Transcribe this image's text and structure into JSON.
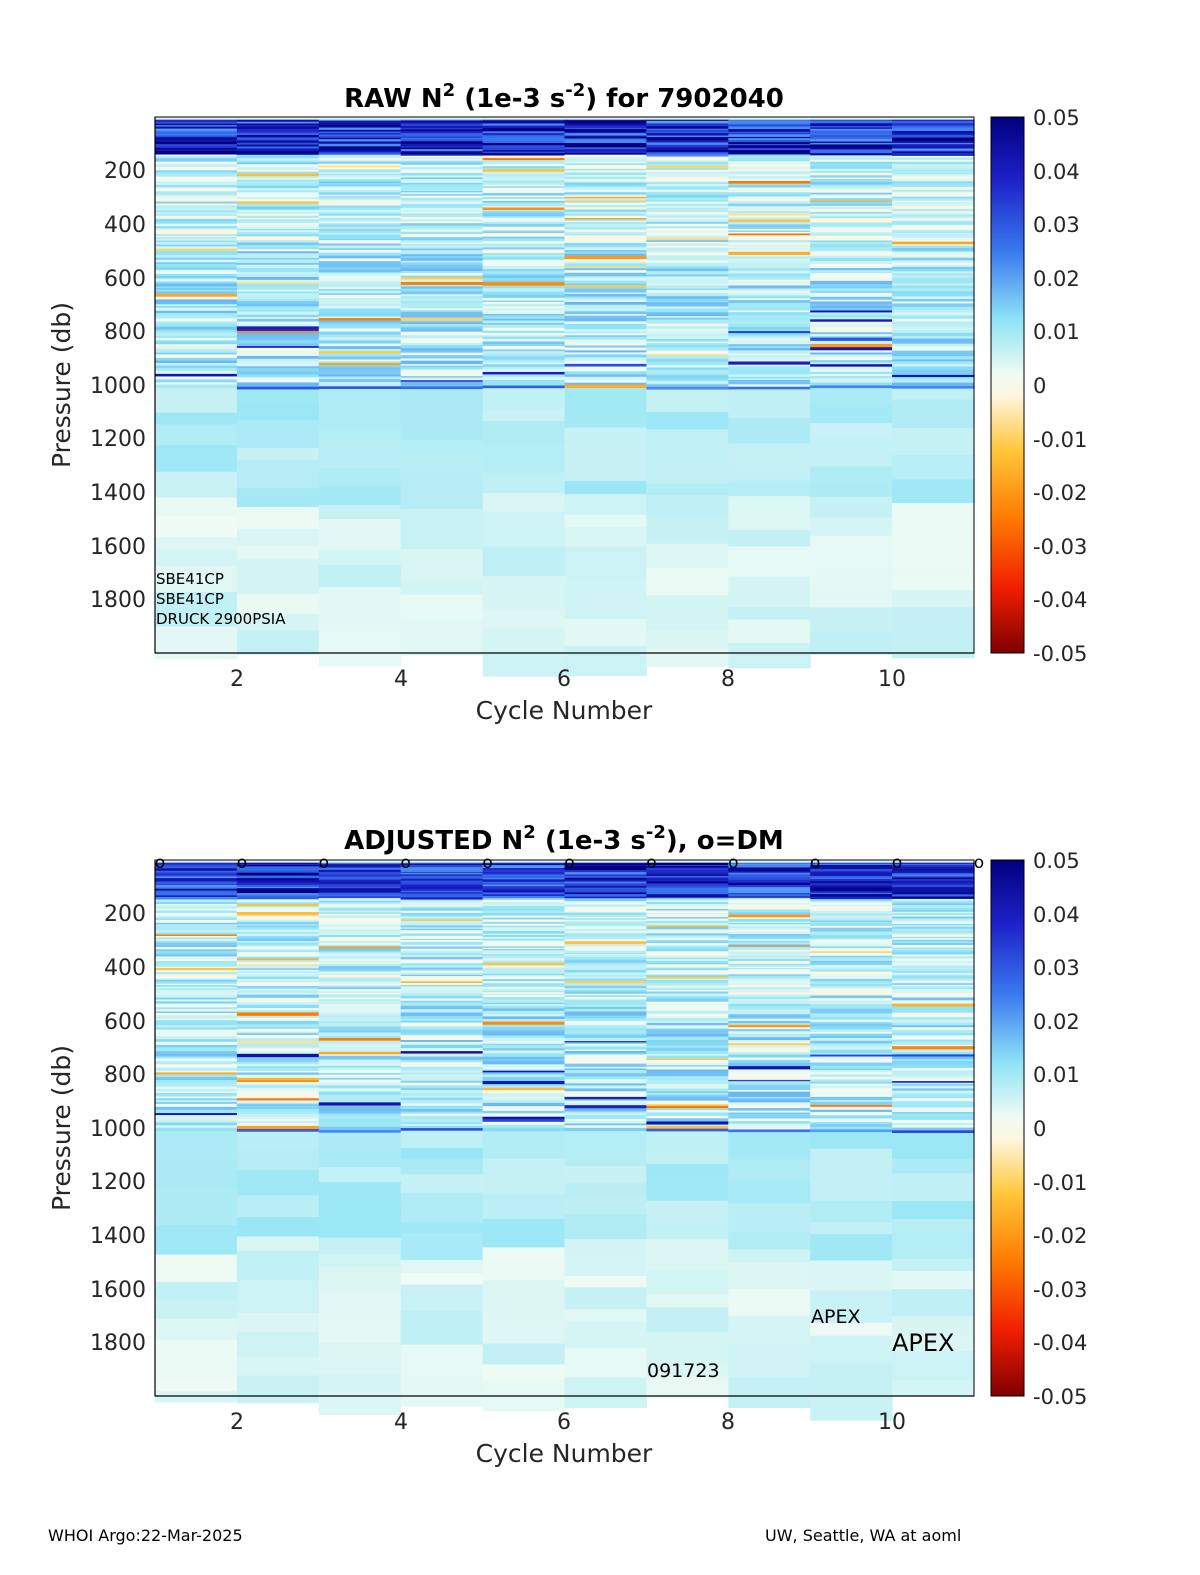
{
  "chart_data": [
    {
      "type": "heatmap",
      "title_main": "RAW N",
      "title_sup1": "2",
      "title_mid": " (1e-3 s",
      "title_sup2": "-2",
      "title_end": ") for 7902040",
      "xlabel": "Cycle Number",
      "ylabel": "Pressure (db)",
      "x_ticks": [
        "2",
        "4",
        "6",
        "8",
        "10"
      ],
      "y_ticks": [
        "200",
        "400",
        "600",
        "800",
        "1000",
        "1200",
        "1400",
        "1600",
        "1800"
      ],
      "colorbar_ticks": [
        "0.05",
        "0.04",
        "0.03",
        "0.02",
        "0.01",
        "0",
        "-0.01",
        "-0.02",
        "-0.03",
        "-0.04",
        "-0.05"
      ],
      "x_range": [
        1,
        11
      ],
      "y_range": [
        0,
        2000
      ],
      "y_reversed": true,
      "color_range": [
        -0.05,
        0.05
      ],
      "colormap": "jet-like (dark red → white → dark blue)",
      "cycles": [
        1,
        2,
        3,
        4,
        5,
        6,
        7,
        8,
        9,
        10
      ],
      "max_pressure_per_cycle": [
        2000,
        2000,
        2000,
        2000,
        2000,
        2000,
        2000,
        2000,
        2000,
        2000
      ],
      "annotations": [
        "SBE41CP",
        "SBE41CP",
        "DRUCK 2900PSIA"
      ]
    },
    {
      "type": "heatmap",
      "title_main": "ADJUSTED N",
      "title_sup1": "2",
      "title_mid": " (1e-3 s",
      "title_sup2": "-2",
      "title_end": "), o=DM",
      "xlabel": "Cycle Number",
      "ylabel": "Pressure (db)",
      "x_ticks": [
        "2",
        "4",
        "6",
        "8",
        "10"
      ],
      "y_ticks": [
        "200",
        "400",
        "600",
        "800",
        "1000",
        "1200",
        "1400",
        "1600",
        "1800"
      ],
      "colorbar_ticks": [
        "0.05",
        "0.04",
        "0.03",
        "0.02",
        "0.01",
        "0",
        "-0.01",
        "-0.02",
        "-0.03",
        "-0.04",
        "-0.05"
      ],
      "x_range": [
        1,
        11
      ],
      "y_range": [
        0,
        2000
      ],
      "y_reversed": true,
      "color_range": [
        -0.05,
        0.05
      ],
      "dm_marker": "o",
      "dm_marker_x": [
        1,
        2,
        3,
        4,
        5,
        6,
        7,
        8,
        9,
        10,
        11
      ],
      "annotations": [
        "APEX",
        "APEX",
        "091723"
      ]
    }
  ],
  "footer": {
    "left": "WHOI Argo:22-Mar-2025",
    "right": "UW, Seattle, WA at aoml"
  }
}
